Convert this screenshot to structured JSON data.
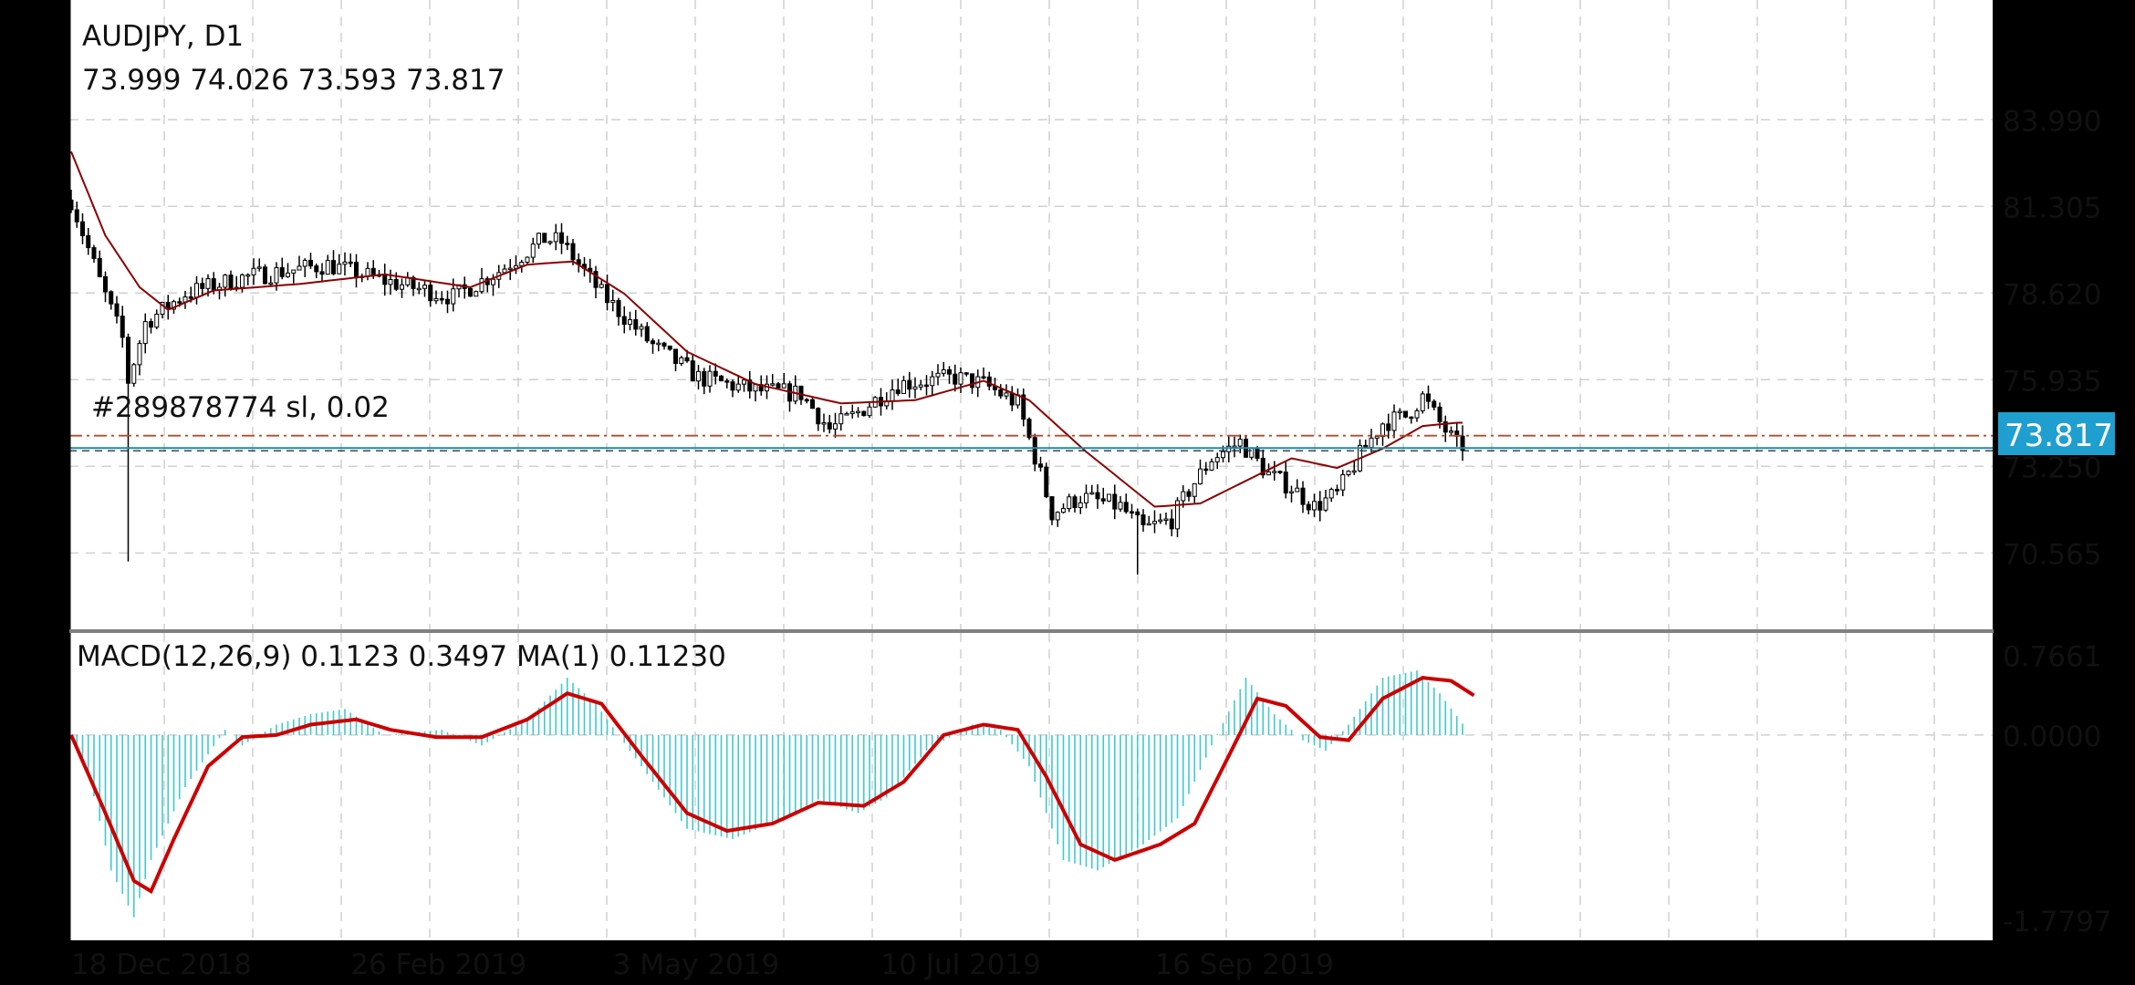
{
  "chart_data": {
    "type": "candlestick",
    "symbol": "AUDJPY, D1",
    "ohlc": "73.999 74.026 73.593 73.817",
    "order_label": "#289878774 sl, 0.02",
    "current_price": 73.817,
    "current_price_label": "73.817",
    "price_ticks": [
      "83.990",
      "81.305",
      "78.620",
      "75.935",
      "73.250",
      "70.565"
    ],
    "price_tick_values": [
      83.99,
      81.305,
      78.62,
      75.935,
      73.25,
      70.565
    ],
    "ylim": [
      68.2,
      87.7
    ],
    "date_labels": [
      "18 Dec 2018",
      "26 Feb 2019",
      "3 May 2019",
      "10 Jul 2019",
      "16 Sep 2019"
    ],
    "date_label_bar_index": [
      0,
      49,
      95,
      142,
      190
    ],
    "bar_count": 240,
    "grid": true,
    "candles": {
      "closes_key_points": [
        {
          "i": 0,
          "v": 81.5
        },
        {
          "i": 5,
          "v": 79.0
        },
        {
          "i": 9,
          "v": 77.2
        },
        {
          "i": 10,
          "v": 75.9
        },
        {
          "i": 13,
          "v": 77.7
        },
        {
          "i": 20,
          "v": 78.6
        },
        {
          "i": 30,
          "v": 79.1
        },
        {
          "i": 45,
          "v": 79.5
        },
        {
          "i": 55,
          "v": 79.0
        },
        {
          "i": 67,
          "v": 78.5
        },
        {
          "i": 75,
          "v": 79.3
        },
        {
          "i": 83,
          "v": 80.3
        },
        {
          "i": 86,
          "v": 80.2
        },
        {
          "i": 93,
          "v": 78.6
        },
        {
          "i": 102,
          "v": 77.0
        },
        {
          "i": 110,
          "v": 76.0
        },
        {
          "i": 120,
          "v": 75.6
        },
        {
          "i": 128,
          "v": 75.5
        },
        {
          "i": 133,
          "v": 74.4
        },
        {
          "i": 137,
          "v": 74.8
        },
        {
          "i": 145,
          "v": 75.8
        },
        {
          "i": 155,
          "v": 76.0
        },
        {
          "i": 160,
          "v": 75.8
        },
        {
          "i": 166,
          "v": 75.2
        },
        {
          "i": 170,
          "v": 73.0
        },
        {
          "i": 172,
          "v": 71.8
        },
        {
          "i": 177,
          "v": 72.3
        },
        {
          "i": 184,
          "v": 72.0
        },
        {
          "i": 188,
          "v": 71.3
        },
        {
          "i": 193,
          "v": 71.6
        },
        {
          "i": 196,
          "v": 72.5
        },
        {
          "i": 200,
          "v": 73.5
        },
        {
          "i": 205,
          "v": 74.0
        },
        {
          "i": 210,
          "v": 73.0
        },
        {
          "i": 214,
          "v": 72.6
        },
        {
          "i": 218,
          "v": 72.0
        },
        {
          "i": 222,
          "v": 72.4
        },
        {
          "i": 226,
          "v": 73.6
        },
        {
          "i": 230,
          "v": 74.6
        },
        {
          "i": 234,
          "v": 74.8
        },
        {
          "i": 237,
          "v": 75.4
        },
        {
          "i": 240,
          "v": 74.6
        },
        {
          "i": 243,
          "v": 73.9
        }
      ],
      "spikes": [
        {
          "i": 10,
          "low": 70.3
        },
        {
          "i": 187,
          "low": 69.9
        }
      ]
    },
    "moving_average": {
      "key_points": [
        {
          "i": 0,
          "v": 83.0
        },
        {
          "i": 6,
          "v": 80.4
        },
        {
          "i": 12,
          "v": 78.8
        },
        {
          "i": 17,
          "v": 78.1
        },
        {
          "i": 25,
          "v": 78.7
        },
        {
          "i": 40,
          "v": 78.9
        },
        {
          "i": 55,
          "v": 79.2
        },
        {
          "i": 70,
          "v": 78.8
        },
        {
          "i": 80,
          "v": 79.5
        },
        {
          "i": 88,
          "v": 79.6
        },
        {
          "i": 97,
          "v": 78.6
        },
        {
          "i": 108,
          "v": 76.8
        },
        {
          "i": 120,
          "v": 75.8
        },
        {
          "i": 135,
          "v": 75.2
        },
        {
          "i": 148,
          "v": 75.3
        },
        {
          "i": 160,
          "v": 75.9
        },
        {
          "i": 168,
          "v": 75.3
        },
        {
          "i": 178,
          "v": 73.7
        },
        {
          "i": 190,
          "v": 72.0
        },
        {
          "i": 198,
          "v": 72.1
        },
        {
          "i": 206,
          "v": 72.8
        },
        {
          "i": 214,
          "v": 73.5
        },
        {
          "i": 222,
          "v": 73.2
        },
        {
          "i": 230,
          "v": 73.8
        },
        {
          "i": 237,
          "v": 74.5
        },
        {
          "i": 243,
          "v": 74.6
        }
      ]
    },
    "macd": {
      "label": "MACD(12,26,9) 0.1123 0.3497 MA(1) 0.11230",
      "ticks": [
        "0.7661",
        "0.0000",
        "-1.7797"
      ],
      "tick_values": [
        0.7661,
        0.0,
        -1.7797
      ],
      "ylim": [
        -1.98,
        0.98
      ],
      "histogram_key_points": [
        {
          "i": 0,
          "v": 0.0
        },
        {
          "i": 3,
          "v": -0.35
        },
        {
          "i": 7,
          "v": -1.3
        },
        {
          "i": 11,
          "v": -1.75
        },
        {
          "i": 14,
          "v": -1.2
        },
        {
          "i": 20,
          "v": -0.5
        },
        {
          "i": 27,
          "v": 0.05
        },
        {
          "i": 30,
          "v": -0.1
        },
        {
          "i": 36,
          "v": 0.1
        },
        {
          "i": 42,
          "v": 0.2
        },
        {
          "i": 48,
          "v": 0.25
        },
        {
          "i": 55,
          "v": 0.0
        },
        {
          "i": 65,
          "v": 0.05
        },
        {
          "i": 72,
          "v": -0.1
        },
        {
          "i": 80,
          "v": 0.15
        },
        {
          "i": 87,
          "v": 0.55
        },
        {
          "i": 92,
          "v": 0.3
        },
        {
          "i": 100,
          "v": -0.3
        },
        {
          "i": 108,
          "v": -0.9
        },
        {
          "i": 116,
          "v": -1.0
        },
        {
          "i": 125,
          "v": -0.8
        },
        {
          "i": 131,
          "v": -0.62
        },
        {
          "i": 138,
          "v": -0.75
        },
        {
          "i": 143,
          "v": -0.6
        },
        {
          "i": 150,
          "v": -0.15
        },
        {
          "i": 158,
          "v": 0.1
        },
        {
          "i": 163,
          "v": 0.05
        },
        {
          "i": 168,
          "v": -0.3
        },
        {
          "i": 174,
          "v": -1.2
        },
        {
          "i": 180,
          "v": -1.3
        },
        {
          "i": 188,
          "v": -1.05
        },
        {
          "i": 194,
          "v": -0.8
        },
        {
          "i": 200,
          "v": -0.1
        },
        {
          "i": 206,
          "v": 0.55
        },
        {
          "i": 211,
          "v": 0.2
        },
        {
          "i": 216,
          "v": -0.05
        },
        {
          "i": 220,
          "v": -0.15
        },
        {
          "i": 224,
          "v": 0.1
        },
        {
          "i": 230,
          "v": 0.55
        },
        {
          "i": 236,
          "v": 0.62
        },
        {
          "i": 240,
          "v": 0.4
        },
        {
          "i": 244,
          "v": 0.11
        }
      ],
      "signal_key_points": [
        {
          "i": 0,
          "v": 0.0
        },
        {
          "i": 6,
          "v": -0.75
        },
        {
          "i": 11,
          "v": -1.4
        },
        {
          "i": 14,
          "v": -1.5
        },
        {
          "i": 18,
          "v": -1.0
        },
        {
          "i": 24,
          "v": -0.3
        },
        {
          "i": 30,
          "v": -0.02
        },
        {
          "i": 36,
          "v": 0.0
        },
        {
          "i": 42,
          "v": 0.1
        },
        {
          "i": 50,
          "v": 0.15
        },
        {
          "i": 56,
          "v": 0.05
        },
        {
          "i": 64,
          "v": -0.02
        },
        {
          "i": 72,
          "v": -0.02
        },
        {
          "i": 80,
          "v": 0.15
        },
        {
          "i": 87,
          "v": 0.4
        },
        {
          "i": 93,
          "v": 0.3
        },
        {
          "i": 100,
          "v": -0.2
        },
        {
          "i": 108,
          "v": -0.75
        },
        {
          "i": 115,
          "v": -0.92
        },
        {
          "i": 123,
          "v": -0.85
        },
        {
          "i": 131,
          "v": -0.65
        },
        {
          "i": 139,
          "v": -0.68
        },
        {
          "i": 146,
          "v": -0.45
        },
        {
          "i": 153,
          "v": 0.0
        },
        {
          "i": 160,
          "v": 0.1
        },
        {
          "i": 166,
          "v": 0.05
        },
        {
          "i": 171,
          "v": -0.4
        },
        {
          "i": 177,
          "v": -1.05
        },
        {
          "i": 183,
          "v": -1.2
        },
        {
          "i": 191,
          "v": -1.05
        },
        {
          "i": 197,
          "v": -0.85
        },
        {
          "i": 203,
          "v": -0.2
        },
        {
          "i": 208,
          "v": 0.35
        },
        {
          "i": 213,
          "v": 0.28
        },
        {
          "i": 219,
          "v": -0.02
        },
        {
          "i": 224,
          "v": -0.05
        },
        {
          "i": 230,
          "v": 0.35
        },
        {
          "i": 237,
          "v": 0.55
        },
        {
          "i": 242,
          "v": 0.52
        },
        {
          "i": 246,
          "v": 0.38
        }
      ]
    },
    "colors": {
      "background": "#ffffff",
      "frame": "#000000",
      "grid": "#d0d0d0",
      "candle": "#000000",
      "moving_average": "#8b0000",
      "order_line": "#b84a2a",
      "bid_line": "#1f8aa8",
      "price_badge": "#1f9fcf",
      "price_badge_text": "#ffffff",
      "macd_histogram": "#3fc9cf",
      "macd_signal": "#cc0000",
      "separator": "#808080"
    }
  }
}
